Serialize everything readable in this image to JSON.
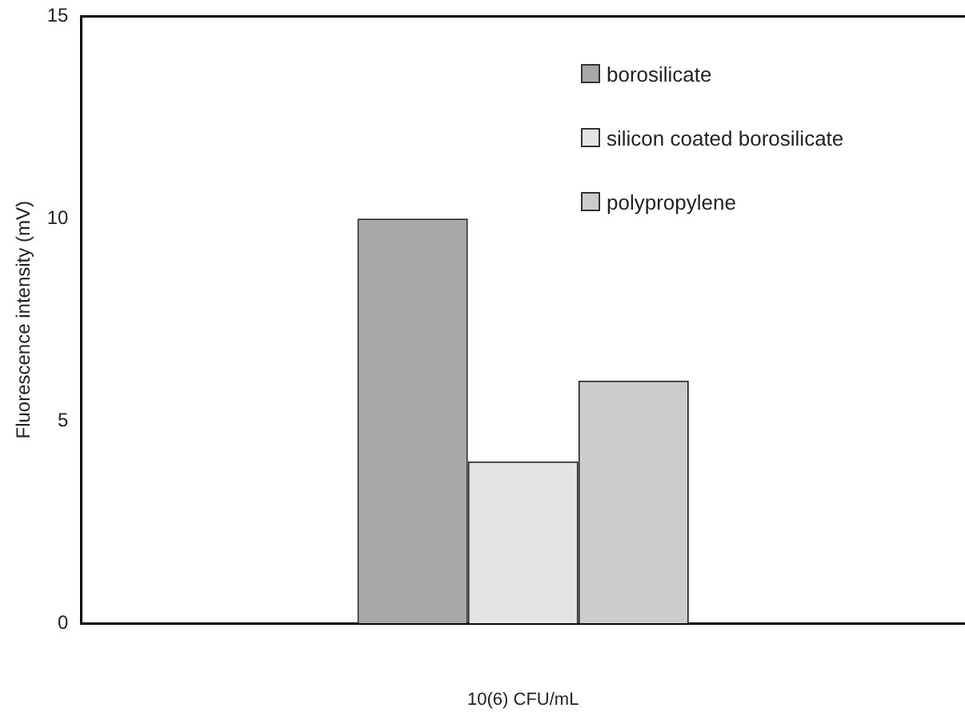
{
  "chart_data": {
    "type": "bar",
    "ylabel": "Fluorescence intensity (mV)",
    "xlabel": "10(6) CFU/mL",
    "categories": [
      null
    ],
    "series": [
      {
        "name": "borosilicate",
        "color": "#a8a8a8",
        "values": [
          10
        ]
      },
      {
        "name": "silicon coated borosilicate",
        "color": "#e4e4e4",
        "values": [
          4
        ]
      },
      {
        "name": "polypropylene",
        "color": "#cccccc",
        "values": [
          6
        ]
      }
    ],
    "ylim": [
      0,
      15
    ],
    "yticks": [
      0,
      5,
      10,
      15
    ],
    "grid": false,
    "legend": "top right"
  }
}
